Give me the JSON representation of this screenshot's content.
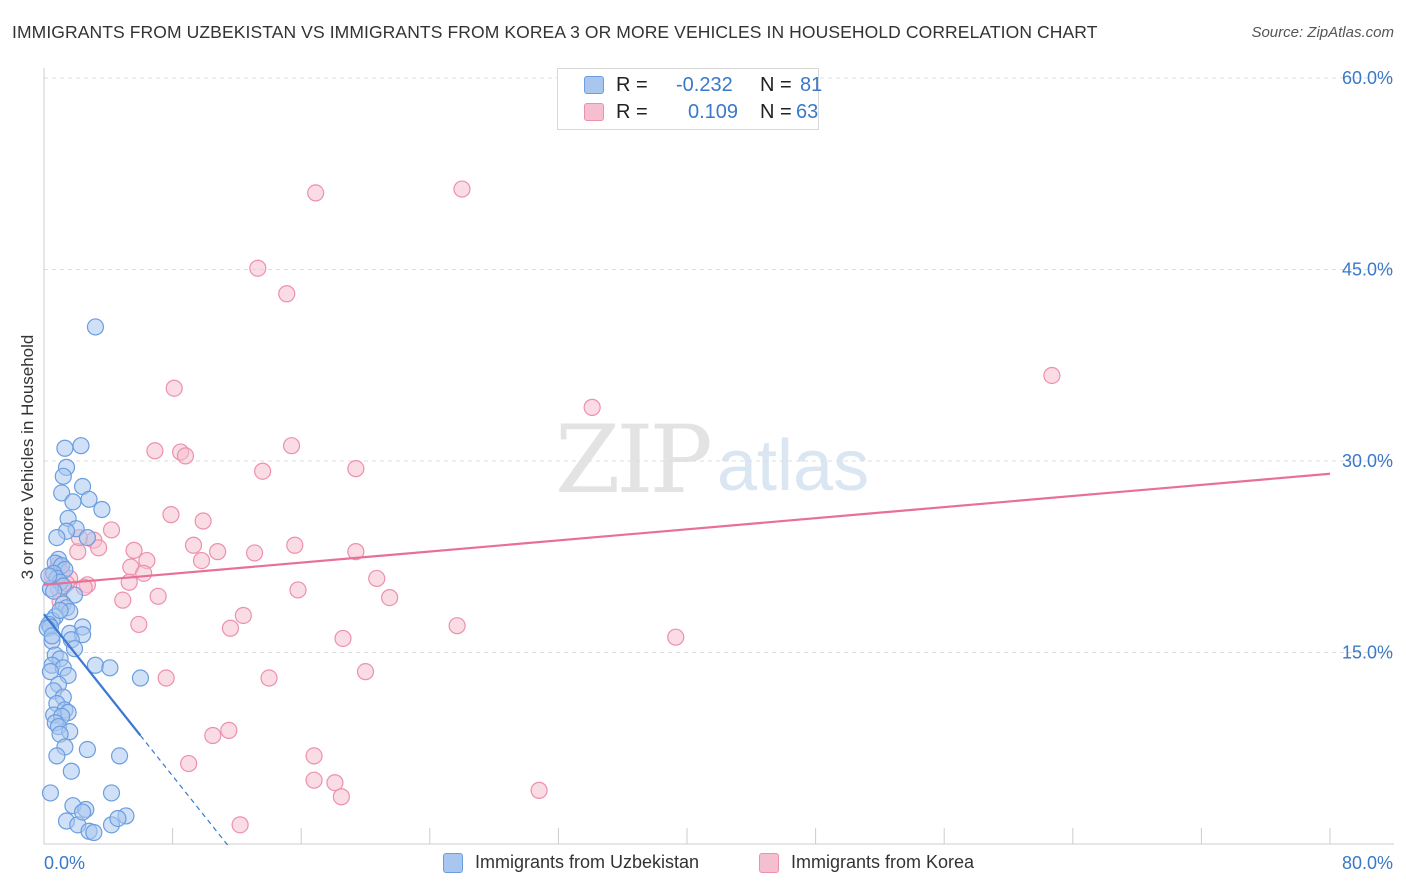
{
  "title": "IMMIGRANTS FROM UZBEKISTAN VS IMMIGRANTS FROM KOREA 3 OR MORE VEHICLES IN HOUSEHOLD CORRELATION CHART",
  "source": "Source: ZipAtlas.com",
  "watermark": {
    "zip": "ZIP",
    "atlas": "atlas"
  },
  "legend": {
    "uzbekistan": {
      "r_label": "R =",
      "r_value": "-0.232",
      "n_label": "N =",
      "n_value": "81"
    },
    "korea": {
      "r_label": "R =",
      "r_value": "0.109",
      "n_label": "N =",
      "n_value": "63"
    }
  },
  "bottom_legend": {
    "uzbekistan": "Immigrants from Uzbekistan",
    "korea": "Immigrants from Korea"
  },
  "colors": {
    "uzbekistan_fill": "#a9c7ee",
    "uzbekistan_stroke": "#6a9ee0",
    "uzbekistan_line": "#3a78d4",
    "korea_fill": "#f6bfd0",
    "korea_stroke": "#ee8fae",
    "korea_line": "#e86f98",
    "axis_value": "#3a78c9",
    "grid": "#dddddd"
  },
  "chart_data": {
    "type": "scatter",
    "title": "IMMIGRANTS FROM UZBEKISTAN VS IMMIGRANTS FROM KOREA 3 OR MORE VEHICLES IN HOUSEHOLD CORRELATION CHART",
    "xlabel": "",
    "ylabel": "3 or more Vehicles in Household",
    "xlim": [
      0,
      80
    ],
    "ylim": [
      0,
      60
    ],
    "x_tick_labels": [
      {
        "value": 0,
        "label": "0.0%"
      },
      {
        "value": 80,
        "label": "80.0%"
      }
    ],
    "y_ticks": [
      {
        "value": 15,
        "label": "15.0%"
      },
      {
        "value": 30,
        "label": "30.0%"
      },
      {
        "value": 45,
        "label": "45.0%"
      },
      {
        "value": 60,
        "label": "60.0%"
      }
    ],
    "x_minor_ticks": [
      8,
      16,
      24,
      32,
      40,
      48,
      56,
      64,
      72,
      80
    ],
    "grid": true,
    "legend_position": "top-center",
    "series": [
      {
        "name": "Immigrants from Uzbekistan",
        "r": -0.232,
        "n": 81,
        "trend": {
          "x0": 0,
          "y0": 18.0,
          "x1": 6.0,
          "y1": 8.5,
          "dashed_to_x": 11.5
        },
        "points": [
          [
            3.2,
            40.5
          ],
          [
            1.3,
            31.0
          ],
          [
            2.3,
            31.2
          ],
          [
            1.4,
            29.5
          ],
          [
            1.2,
            28.8
          ],
          [
            2.4,
            28.0
          ],
          [
            1.1,
            27.5
          ],
          [
            2.8,
            27.0
          ],
          [
            1.8,
            26.8
          ],
          [
            3.6,
            26.2
          ],
          [
            1.5,
            25.5
          ],
          [
            2.0,
            24.7
          ],
          [
            1.4,
            24.5
          ],
          [
            0.8,
            24.0
          ],
          [
            2.7,
            24.0
          ],
          [
            0.9,
            22.3
          ],
          [
            0.7,
            22.0
          ],
          [
            1.1,
            21.8
          ],
          [
            1.3,
            21.5
          ],
          [
            0.6,
            21.2
          ],
          [
            0.8,
            20.8
          ],
          [
            1.0,
            20.5
          ],
          [
            1.2,
            20.2
          ],
          [
            0.4,
            20.0
          ],
          [
            0.6,
            19.8
          ],
          [
            1.9,
            19.5
          ],
          [
            1.2,
            18.8
          ],
          [
            1.4,
            18.5
          ],
          [
            1.6,
            18.2
          ],
          [
            0.7,
            17.8
          ],
          [
            0.5,
            17.5
          ],
          [
            0.3,
            17.2
          ],
          [
            0.4,
            17.0
          ],
          [
            0.2,
            16.9
          ],
          [
            2.4,
            17.0
          ],
          [
            1.6,
            16.5
          ],
          [
            2.4,
            16.4
          ],
          [
            1.7,
            16.0
          ],
          [
            0.5,
            15.9
          ],
          [
            1.9,
            15.3
          ],
          [
            0.7,
            14.8
          ],
          [
            1.0,
            14.5
          ],
          [
            0.5,
            14.0
          ],
          [
            1.2,
            13.8
          ],
          [
            3.2,
            14.0
          ],
          [
            4.1,
            13.8
          ],
          [
            0.4,
            13.5
          ],
          [
            1.5,
            13.2
          ],
          [
            6.0,
            13.0
          ],
          [
            0.9,
            12.5
          ],
          [
            0.6,
            12.0
          ],
          [
            1.2,
            11.5
          ],
          [
            0.8,
            11.0
          ],
          [
            1.3,
            10.5
          ],
          [
            1.5,
            10.3
          ],
          [
            0.6,
            10.1
          ],
          [
            1.1,
            10.0
          ],
          [
            0.7,
            9.5
          ],
          [
            0.9,
            9.2
          ],
          [
            1.6,
            8.8
          ],
          [
            1.0,
            8.6
          ],
          [
            2.7,
            7.4
          ],
          [
            1.3,
            7.6
          ],
          [
            4.7,
            6.9
          ],
          [
            0.8,
            6.9
          ],
          [
            1.7,
            5.7
          ],
          [
            0.4,
            4.0
          ],
          [
            4.2,
            4.0
          ],
          [
            1.8,
            3.0
          ],
          [
            2.6,
            2.7
          ],
          [
            1.4,
            1.8
          ],
          [
            5.1,
            2.2
          ],
          [
            2.1,
            1.5
          ],
          [
            4.2,
            1.5
          ],
          [
            4.6,
            2.0
          ],
          [
            2.8,
            1.0
          ],
          [
            3.1,
            0.9
          ],
          [
            2.4,
            2.5
          ],
          [
            0.5,
            16.3
          ],
          [
            1.0,
            18.3
          ],
          [
            0.3,
            21.0
          ]
        ]
      },
      {
        "name": "Immigrants from Korea",
        "r": 0.109,
        "n": 63,
        "trend": {
          "x0": 0,
          "y0": 20.3,
          "x1": 80,
          "y1": 29.0
        },
        "points": [
          [
            26.0,
            51.3
          ],
          [
            16.9,
            51.0
          ],
          [
            13.3,
            45.1
          ],
          [
            15.1,
            43.1
          ],
          [
            62.7,
            36.7
          ],
          [
            8.1,
            35.7
          ],
          [
            34.1,
            34.2
          ],
          [
            15.4,
            31.2
          ],
          [
            6.9,
            30.8
          ],
          [
            8.5,
            30.7
          ],
          [
            8.8,
            30.4
          ],
          [
            19.4,
            29.4
          ],
          [
            13.6,
            29.2
          ],
          [
            7.9,
            25.8
          ],
          [
            9.9,
            25.3
          ],
          [
            4.2,
            24.6
          ],
          [
            3.1,
            23.8
          ],
          [
            3.4,
            23.2
          ],
          [
            9.3,
            23.4
          ],
          [
            15.6,
            23.4
          ],
          [
            5.6,
            23.0
          ],
          [
            2.1,
            22.9
          ],
          [
            10.8,
            22.9
          ],
          [
            19.4,
            22.9
          ],
          [
            13.1,
            22.8
          ],
          [
            6.4,
            22.2
          ],
          [
            9.8,
            22.2
          ],
          [
            0.9,
            21.9
          ],
          [
            5.4,
            21.7
          ],
          [
            6.2,
            21.2
          ],
          [
            1.1,
            21.3
          ],
          [
            0.5,
            21.0
          ],
          [
            1.6,
            20.8
          ],
          [
            20.7,
            20.8
          ],
          [
            5.3,
            20.5
          ],
          [
            2.7,
            20.3
          ],
          [
            0.9,
            20.0
          ],
          [
            2.5,
            20.1
          ],
          [
            15.8,
            19.9
          ],
          [
            7.1,
            19.4
          ],
          [
            21.5,
            19.3
          ],
          [
            4.9,
            19.1
          ],
          [
            1.0,
            19.0
          ],
          [
            12.4,
            17.9
          ],
          [
            5.9,
            17.2
          ],
          [
            25.7,
            17.1
          ],
          [
            11.6,
            16.9
          ],
          [
            39.3,
            16.2
          ],
          [
            18.6,
            16.1
          ],
          [
            20.0,
            13.5
          ],
          [
            14.0,
            13.0
          ],
          [
            7.6,
            13.0
          ],
          [
            11.5,
            8.9
          ],
          [
            10.5,
            8.5
          ],
          [
            9.0,
            6.3
          ],
          [
            16.8,
            6.9
          ],
          [
            16.8,
            5.0
          ],
          [
            18.1,
            4.8
          ],
          [
            30.8,
            4.2
          ],
          [
            18.5,
            3.7
          ],
          [
            12.2,
            1.5
          ],
          [
            2.2,
            24.0
          ],
          [
            1.4,
            20.4
          ]
        ]
      }
    ]
  }
}
